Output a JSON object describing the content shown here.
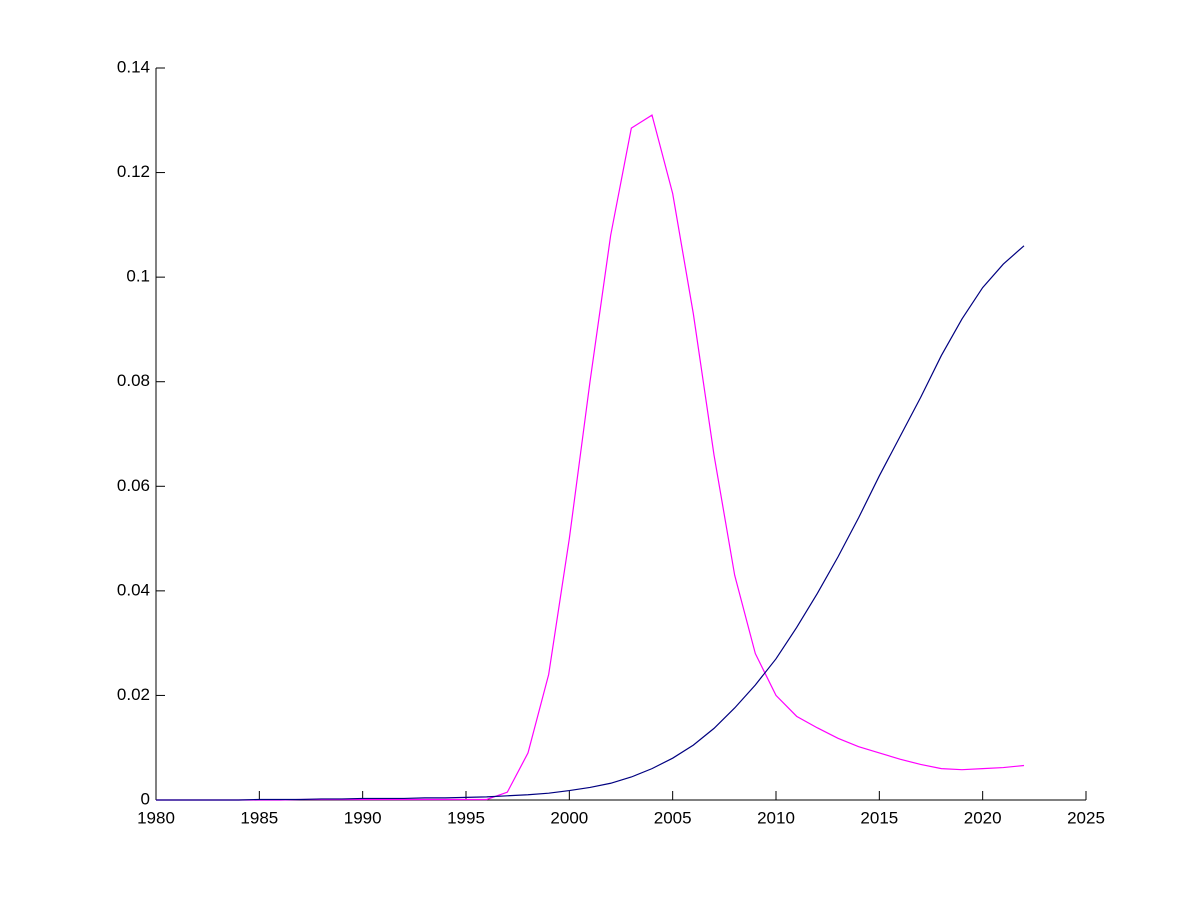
{
  "chart_data": {
    "type": "line",
    "x": [
      1980,
      1981,
      1982,
      1983,
      1984,
      1985,
      1986,
      1987,
      1988,
      1989,
      1990,
      1991,
      1992,
      1993,
      1994,
      1995,
      1996,
      1997,
      1998,
      1999,
      2000,
      2001,
      2002,
      2003,
      2004,
      2005,
      2006,
      2007,
      2008,
      2009,
      2010,
      2011,
      2012,
      2013,
      2014,
      2015,
      2016,
      2017,
      2018,
      2019,
      2020,
      2021,
      2022
    ],
    "series": [
      {
        "color": "#ff00ff",
        "values": [
          0,
          0,
          0,
          0,
          0,
          0,
          0,
          0.0001,
          0.0001,
          0.0001,
          0.0001,
          0.0001,
          0.0001,
          0.0001,
          0.0001,
          0.0001,
          0.0001,
          0.0015,
          0.009,
          0.024,
          0.05,
          0.08,
          0.108,
          0.1285,
          0.131,
          0.116,
          0.093,
          0.066,
          0.043,
          0.028,
          0.02,
          0.016,
          0.0138,
          0.0118,
          0.0102,
          0.009,
          0.0078,
          0.0068,
          0.006,
          0.0058,
          0.006,
          0.0062,
          0.0066
        ]
      },
      {
        "color": "#000080",
        "values": [
          0,
          0,
          0,
          0,
          0,
          0.0001,
          0.0001,
          0.0001,
          0.0002,
          0.0002,
          0.0003,
          0.0003,
          0.0003,
          0.0004,
          0.0004,
          0.0005,
          0.0006,
          0.0008,
          0.001,
          0.0013,
          0.0018,
          0.0024,
          0.0032,
          0.0044,
          0.006,
          0.008,
          0.0105,
          0.0137,
          0.0176,
          0.022,
          0.027,
          0.033,
          0.0395,
          0.0465,
          0.054,
          0.062,
          0.0695,
          0.077,
          0.085,
          0.092,
          0.098,
          0.1025,
          0.106
        ]
      }
    ],
    "xlim": [
      1980,
      2025
    ],
    "xticks": [
      1980,
      1985,
      1990,
      1995,
      2000,
      2005,
      2010,
      2015,
      2020,
      2025
    ],
    "ylim": [
      0,
      0.14
    ],
    "yticks": [
      0,
      0.02,
      0.04,
      0.06,
      0.08,
      0.1,
      0.12,
      0.14
    ],
    "grid": false
  }
}
